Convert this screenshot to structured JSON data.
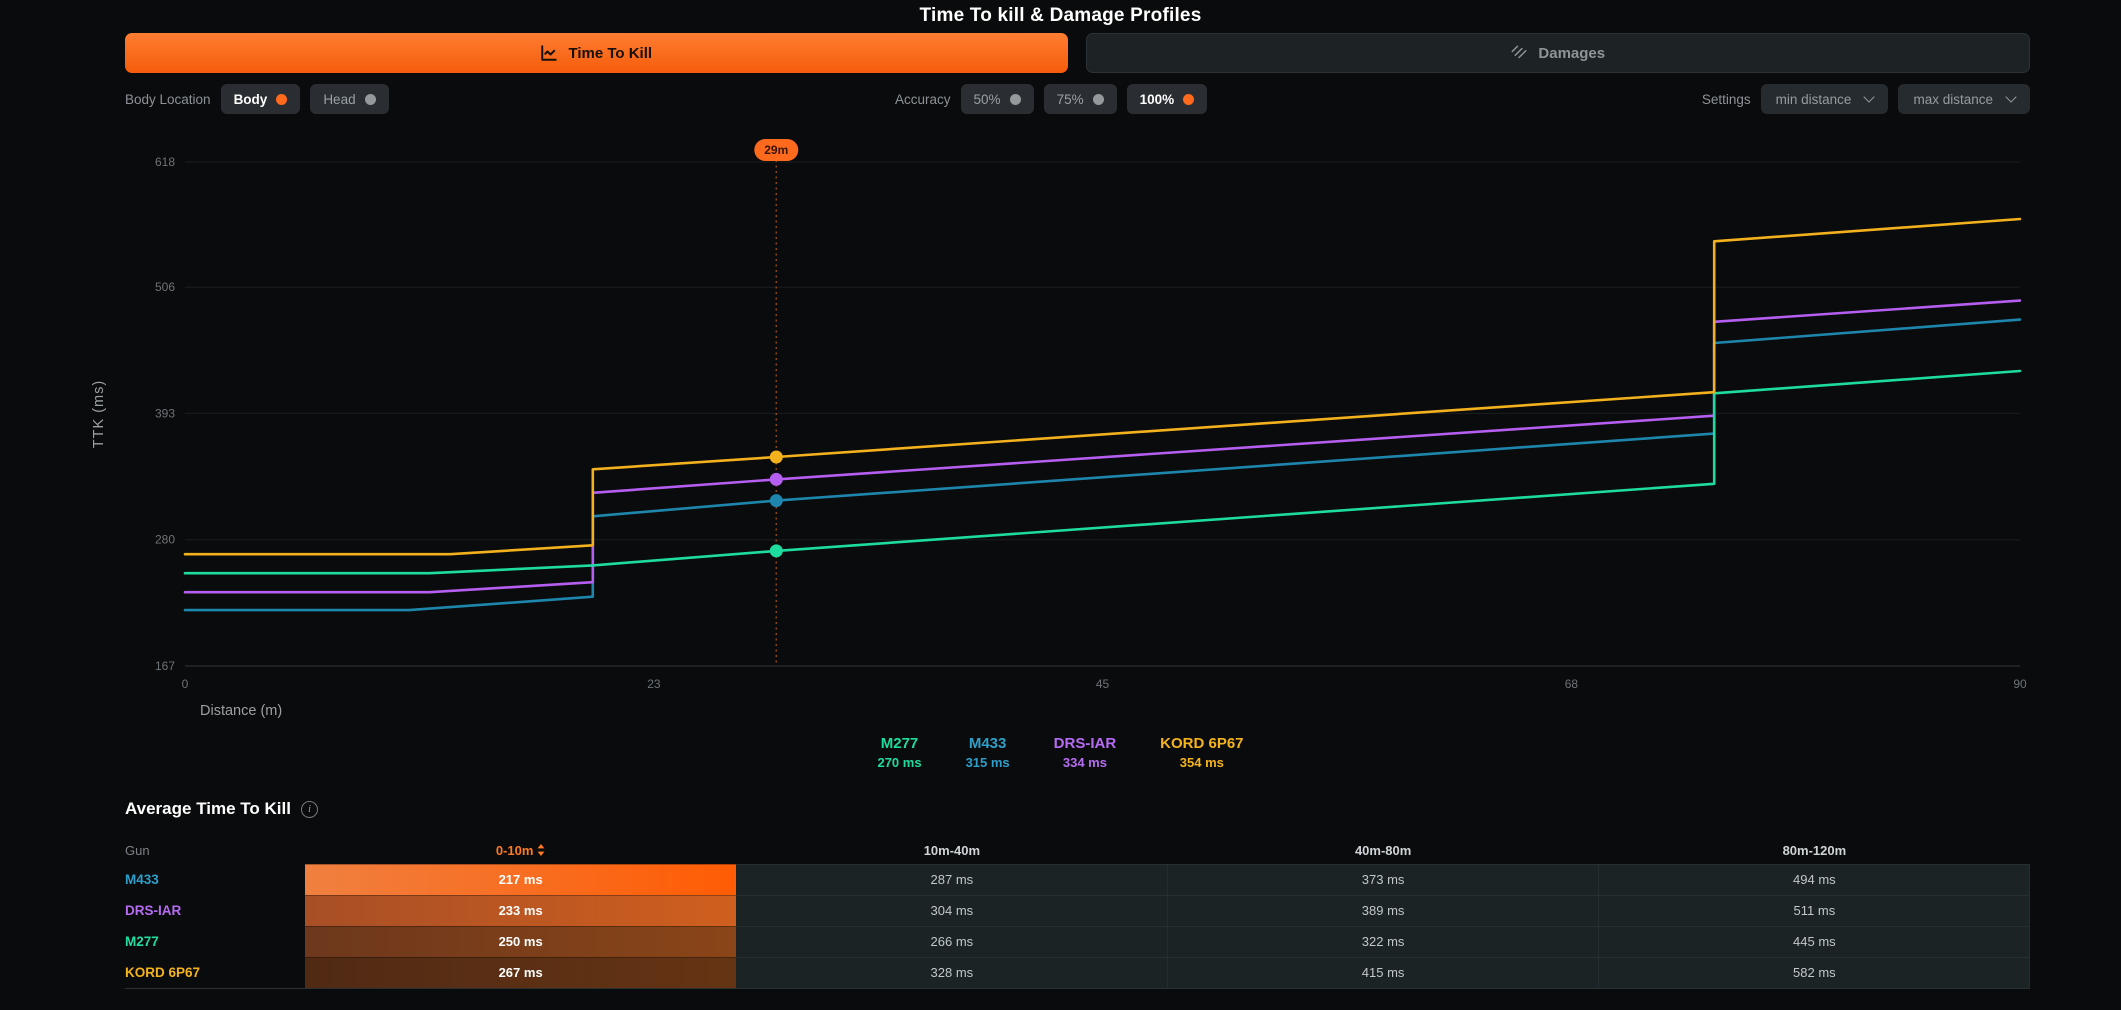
{
  "title": "Time To kill & Damage Profiles",
  "tabs": {
    "time_to_kill": {
      "label": "Time To Kill",
      "active": true
    },
    "damages": {
      "label": "Damages",
      "active": false
    }
  },
  "controls": {
    "body_location": {
      "label": "Body Location",
      "body": {
        "label": "Body",
        "active": true
      },
      "head": {
        "label": "Head",
        "active": false
      }
    },
    "accuracy": {
      "label": "Accuracy",
      "opt50": {
        "label": "50%",
        "active": false
      },
      "opt75": {
        "label": "75%",
        "active": false
      },
      "opt100": {
        "label": "100%",
        "active": true
      }
    },
    "settings": {
      "label": "Settings",
      "min_distance": {
        "label": "min distance"
      },
      "max_distance": {
        "label": "max distance"
      }
    }
  },
  "chart_data": {
    "type": "line",
    "xlabel": "Distance (m)",
    "ylabel": "TTK (ms)",
    "xlim": [
      0,
      90
    ],
    "ylim": [
      167,
      618
    ],
    "x_ticks": [
      0,
      23,
      45,
      68,
      90
    ],
    "y_ticks": [
      167,
      280,
      393,
      506,
      618
    ],
    "grid": "horizontal-faint",
    "ref_line": {
      "x": 29,
      "label": "29m",
      "color": "#fd6a1e",
      "line_color": "#8f4814"
    },
    "series": [
      {
        "name": "M433",
        "color": "#1e86ac",
        "value_at_ref": 315,
        "points": [
          [
            0,
            217
          ],
          [
            11,
            217
          ],
          [
            20,
            229
          ],
          [
            20,
            301
          ],
          [
            29,
            315
          ],
          [
            75,
            375
          ],
          [
            75,
            456
          ],
          [
            90,
            477
          ]
        ]
      },
      {
        "name": "DRS-IAR",
        "color": "#b55ef0",
        "value_at_ref": 334,
        "points": [
          [
            0,
            233
          ],
          [
            12,
            233
          ],
          [
            20,
            242
          ],
          [
            20,
            322
          ],
          [
            29,
            334
          ],
          [
            75,
            391
          ],
          [
            75,
            475
          ],
          [
            90,
            494
          ]
        ]
      },
      {
        "name": "M277",
        "color": "#1edc9f",
        "value_at_ref": 270,
        "points": [
          [
            0,
            250
          ],
          [
            12,
            250
          ],
          [
            20,
            257
          ],
          [
            29,
            270
          ],
          [
            75,
            330
          ],
          [
            75,
            411
          ],
          [
            90,
            431
          ]
        ]
      },
      {
        "name": "KORD 6P67",
        "color": "#f3b11d",
        "value_at_ref": 354,
        "points": [
          [
            0,
            267
          ],
          [
            13,
            267
          ],
          [
            20,
            275
          ],
          [
            20,
            343
          ],
          [
            29,
            354
          ],
          [
            75,
            412
          ],
          [
            75,
            547
          ],
          [
            90,
            567
          ]
        ]
      }
    ],
    "legend": [
      {
        "name": "M277",
        "value": "270 ms",
        "color": "#1edc9f"
      },
      {
        "name": "M433",
        "value": "315 ms",
        "color": "#2f9fc9"
      },
      {
        "name": "DRS-IAR",
        "value": "334 ms",
        "color": "#b56cf2"
      },
      {
        "name": "KORD 6P67",
        "value": "354 ms",
        "color": "#f5b41e"
      }
    ],
    "legend_position": "bottom-center"
  },
  "table": {
    "title": "Average Time To Kill",
    "columns": [
      "Gun",
      "0-10m",
      "10m-40m",
      "40m-80m",
      "80m-120m"
    ],
    "sort": {
      "column": "0-10m",
      "ascending": true
    },
    "rows": [
      {
        "gun": "M433",
        "color": "#2f9fc9",
        "values": [
          "217 ms",
          "287 ms",
          "373 ms",
          "494 ms"
        ],
        "bar_colors": [
          "#f08040",
          "#ff5c04"
        ]
      },
      {
        "gun": "DRS-IAR",
        "color": "#b56cf2",
        "values": [
          "233 ms",
          "304 ms",
          "389 ms",
          "511 ms"
        ],
        "bar_colors": [
          "#a84f26",
          "#cf5f1e"
        ]
      },
      {
        "gun": "M277",
        "color": "#21dda1",
        "values": [
          "250 ms",
          "266 ms",
          "322 ms",
          "445 ms"
        ],
        "bar_colors": [
          "#6d381c",
          "#8a4518"
        ]
      },
      {
        "gun": "KORD 6P67",
        "color": "#f5b41e",
        "values": [
          "267 ms",
          "328 ms",
          "415 ms",
          "582 ms"
        ],
        "bar_colors": [
          "#512a14",
          "#653413"
        ]
      }
    ]
  }
}
